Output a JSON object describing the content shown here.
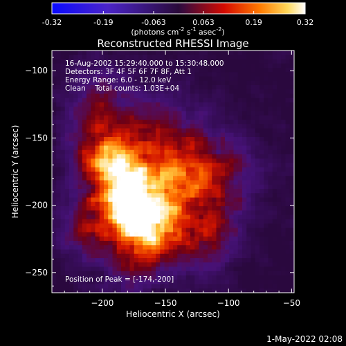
{
  "colorbar": {
    "tick_labels": [
      "-0.32",
      "-0.19",
      "-0.063",
      "0.063",
      "0.19",
      "0.32"
    ],
    "tick_values": [
      -0.32,
      -0.19,
      -0.063,
      0.063,
      0.19,
      0.32
    ],
    "range": [
      -0.32,
      0.32
    ],
    "units_main": "(photons cm",
    "units_sup1": "-2",
    "units_mid1": " s",
    "units_sup2": "-1",
    "units_mid2": " asec",
    "units_sup3": "-2",
    "units_end": ")"
  },
  "info": {
    "time": "16-Aug-2002 15:29:40.000 to 15:30:48.000",
    "detectors": "Detectors: 3F 4F 5F 6F 7F 8F, Att 1",
    "energy": "Energy Range: 6.0 - 12.0 keV",
    "clean": "Clean    Total counts: 1.03E+04",
    "peak": "Position of Peak = [-174,-200]"
  },
  "footer": {
    "date": "1-May-2022 02:08"
  },
  "colors": {
    "background": "#000000",
    "text": "#ffffff",
    "frame": "#ffffff"
  },
  "chart_data": {
    "type": "heatmap",
    "title": "Reconstructed RHESSI Image",
    "xlabel": "Heliocentric X (arcsec)",
    "ylabel": "Heliocentric Y (arcsec)",
    "xlim": [
      -240,
      -48
    ],
    "ylim": [
      -265,
      -85
    ],
    "xticks": [
      -200,
      -150,
      -100,
      -50
    ],
    "yticks": [
      -100,
      -150,
      -200,
      -250
    ],
    "xtick_labels": [
      "−200",
      "−150",
      "−100",
      "−50"
    ],
    "ytick_labels": [
      "−100",
      "−150",
      "−200",
      "−250"
    ],
    "colormap": "purple-red-orange-yellow-white (negative: blue)",
    "peak": [
      -174,
      -200
    ]
  }
}
